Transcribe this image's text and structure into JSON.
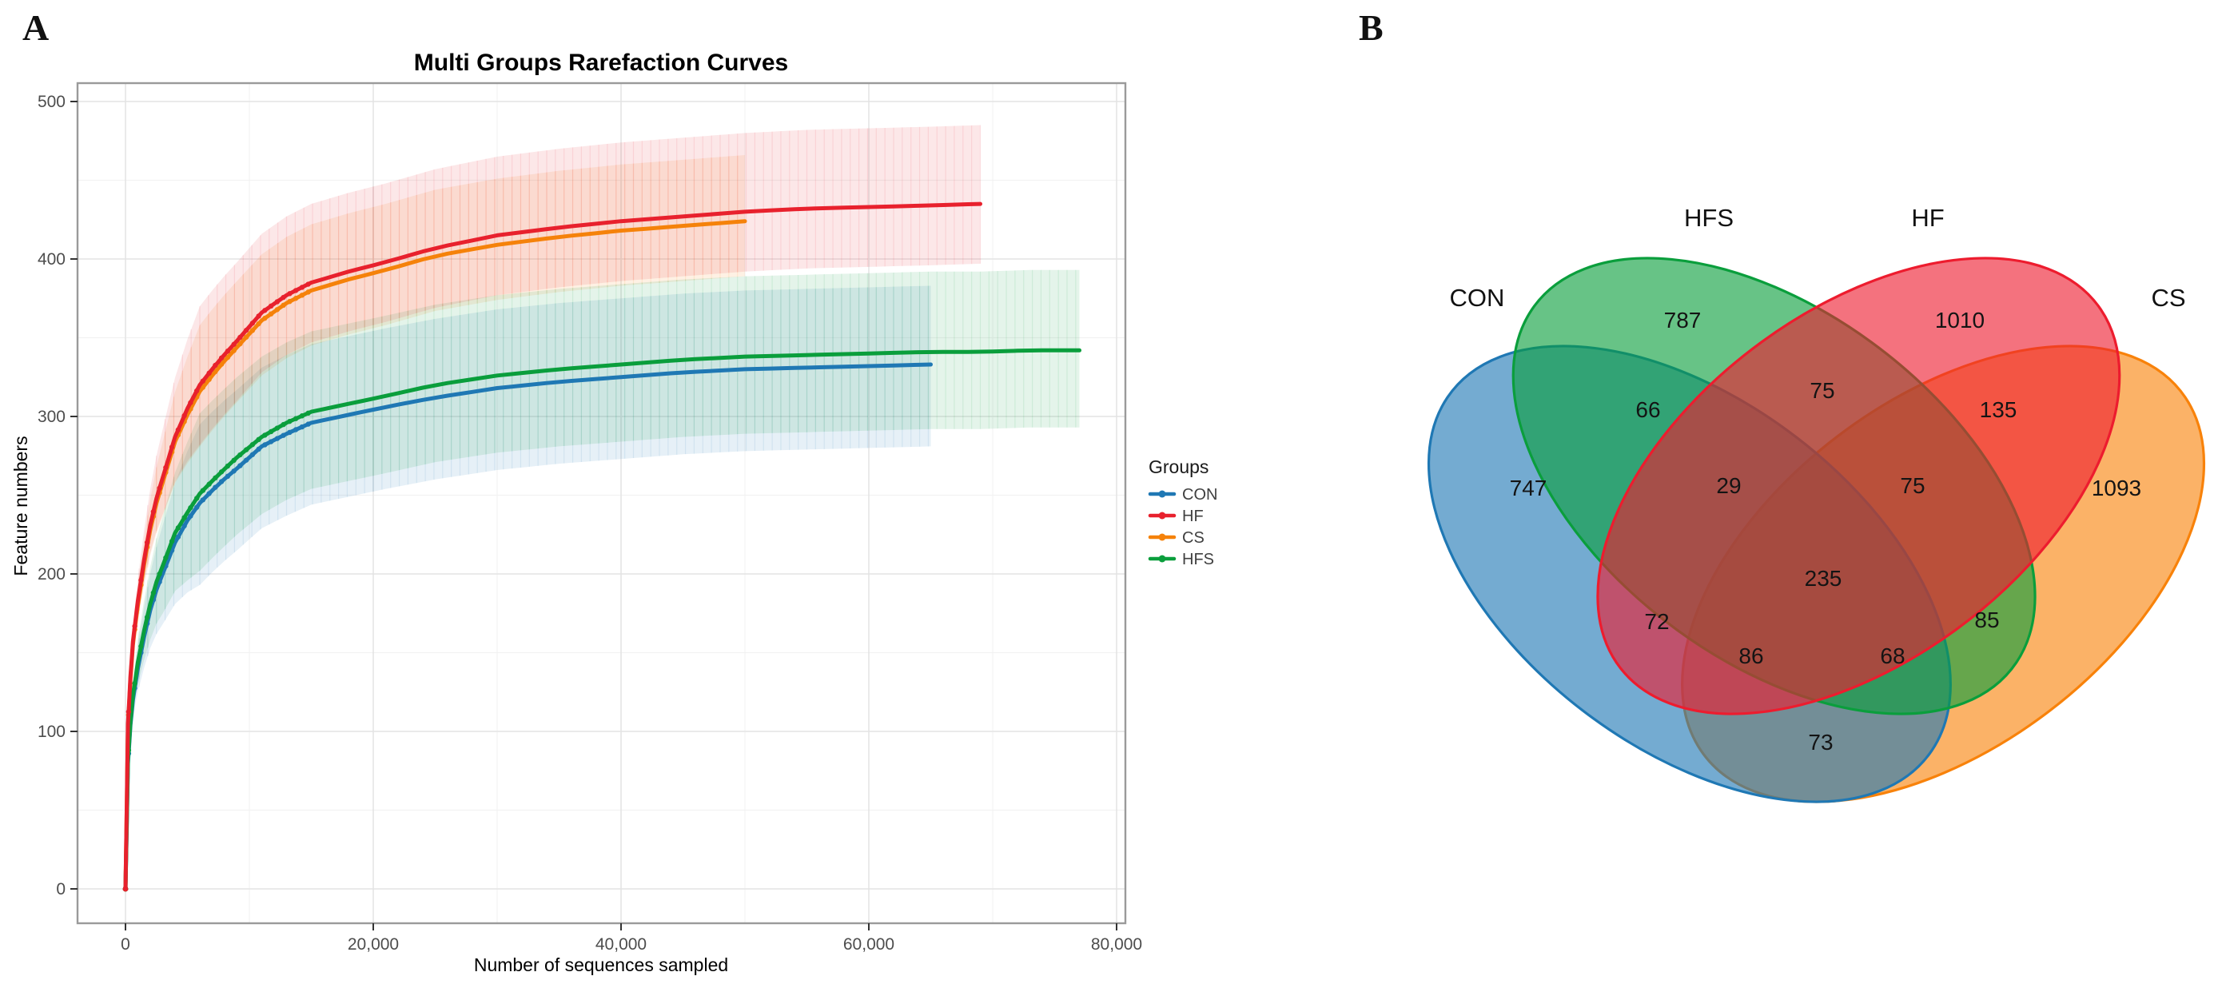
{
  "figure": {
    "panel_a_label": "A",
    "panel_b_label": "B"
  },
  "chart_data": [
    {
      "type": "line",
      "title": "Multi Groups Rarefaction Curves",
      "xlabel": "Number of sequences sampled",
      "ylabel": "Feature numbers",
      "xlim": [
        0,
        80000
      ],
      "ylim": [
        0,
        500
      ],
      "x_ticks": [
        0,
        20000,
        40000,
        60000,
        80000
      ],
      "y_ticks": [
        0,
        100,
        200,
        300,
        400,
        500
      ],
      "grid": true,
      "legend_title": "Groups",
      "legend_position": "right",
      "series": [
        {
          "name": "CON",
          "color": "#1f78b4",
          "ci_lower_offset": 52,
          "ci_upper_offset": 50,
          "x": [
            0,
            200,
            400,
            600,
            800,
            1000,
            1500,
            2000,
            2500,
            3000,
            4000,
            5000,
            6000,
            7500,
            9000,
            11000,
            13000,
            15000,
            18000,
            21000,
            25000,
            30000,
            35000,
            40000,
            45000,
            50000,
            55000,
            60000,
            65000
          ],
          "y": [
            0,
            80,
            104,
            120,
            130,
            140,
            160,
            177,
            190,
            200,
            220,
            234,
            245,
            257,
            267,
            281,
            289,
            296,
            301,
            306,
            312,
            318,
            322,
            325,
            328,
            330,
            331,
            332,
            333
          ]
        },
        {
          "name": "HF",
          "color": "#e8212d",
          "ci_lower_offset": 38,
          "ci_upper_offset": 50,
          "x": [
            0,
            200,
            400,
            600,
            800,
            1000,
            1500,
            2000,
            2500,
            3000,
            4000,
            5000,
            6000,
            7500,
            9000,
            11000,
            13000,
            15000,
            18000,
            21000,
            25000,
            30000,
            35000,
            40000,
            45000,
            50000,
            55000,
            60000,
            65000,
            69000
          ],
          "y": [
            0,
            105,
            135,
            157,
            170,
            183,
            209,
            231,
            248,
            261,
            287,
            305,
            320,
            335,
            348,
            366,
            377,
            385,
            392,
            398,
            407,
            415,
            420,
            424,
            427,
            430,
            432,
            433,
            434,
            435
          ]
        },
        {
          "name": "CS",
          "color": "#f5820a",
          "ci_lower_offset": 35,
          "ci_upper_offset": 42,
          "x": [
            0,
            200,
            400,
            600,
            800,
            1000,
            1500,
            2000,
            2500,
            3000,
            4000,
            5000,
            6000,
            7500,
            9000,
            11000,
            13000,
            15000,
            18000,
            21000,
            25000,
            30000,
            35000,
            40000,
            45000,
            50000
          ],
          "y": [
            0,
            103,
            133,
            155,
            168,
            180,
            206,
            228,
            245,
            258,
            284,
            301,
            316,
            331,
            344,
            361,
            372,
            380,
            387,
            393,
            402,
            409,
            414,
            418,
            421,
            424
          ]
        },
        {
          "name": "HFS",
          "color": "#0a9e3c",
          "ci_lower_offset": 49,
          "ci_upper_offset": 51,
          "x": [
            0,
            200,
            400,
            600,
            800,
            1000,
            1500,
            2000,
            2500,
            3000,
            4000,
            5000,
            6000,
            7500,
            9000,
            11000,
            13000,
            15000,
            18000,
            21000,
            25000,
            30000,
            35000,
            40000,
            45000,
            50000,
            55000,
            60000,
            65000,
            69000,
            73000,
            77000
          ],
          "y": [
            0,
            82,
            106,
            123,
            133,
            144,
            164,
            181,
            195,
            205,
            226,
            239,
            251,
            263,
            274,
            287,
            296,
            303,
            308,
            313,
            320,
            326,
            330,
            333,
            336,
            338,
            339,
            340,
            341,
            341,
            342,
            342
          ]
        }
      ]
    },
    {
      "type": "venn",
      "sets": [
        {
          "id": "CON",
          "label": "CON",
          "color": "#1f78b4"
        },
        {
          "id": "HFS",
          "label": "HFS",
          "color": "#0a9e3c"
        },
        {
          "id": "HF",
          "label": "HF",
          "color": "#ed1c2e"
        },
        {
          "id": "CS",
          "label": "CS",
          "color": "#f8820a"
        }
      ],
      "fill_opacity": 0.62,
      "regions": [
        {
          "id": "con",
          "sets": [
            "CON"
          ],
          "value": 747
        },
        {
          "id": "hfs",
          "sets": [
            "HFS"
          ],
          "value": 787
        },
        {
          "id": "hf",
          "sets": [
            "HF"
          ],
          "value": 1010
        },
        {
          "id": "cs",
          "sets": [
            "CS"
          ],
          "value": 1093
        },
        {
          "id": "con_hfs",
          "sets": [
            "CON",
            "HFS"
          ],
          "value": 66
        },
        {
          "id": "hfs_hf",
          "sets": [
            "HFS",
            "HF"
          ],
          "value": 75
        },
        {
          "id": "hf_cs",
          "sets": [
            "HF",
            "CS"
          ],
          "value": 135
        },
        {
          "id": "con_hf",
          "sets": [
            "CON",
            "HF"
          ],
          "value": 72
        },
        {
          "id": "hfs_cs",
          "sets": [
            "HFS",
            "CS"
          ],
          "value": 85
        },
        {
          "id": "con_cs",
          "sets": [
            "CON",
            "CS"
          ],
          "value": 73
        },
        {
          "id": "con_hfs_hf",
          "sets": [
            "CON",
            "HFS",
            "HF"
          ],
          "value": 29
        },
        {
          "id": "hfs_hf_cs",
          "sets": [
            "HFS",
            "HF",
            "CS"
          ],
          "value": 75
        },
        {
          "id": "con_hf_cs",
          "sets": [
            "CON",
            "HF",
            "CS"
          ],
          "value": 86
        },
        {
          "id": "con_hfs_cs",
          "sets": [
            "CON",
            "HFS",
            "CS"
          ],
          "value": 68
        },
        {
          "id": "all",
          "sets": [
            "CON",
            "HFS",
            "HF",
            "CS"
          ],
          "value": 235
        }
      ]
    }
  ]
}
